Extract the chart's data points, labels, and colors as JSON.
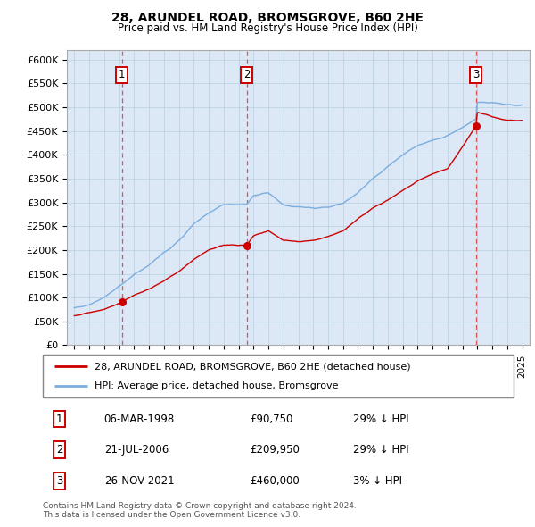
{
  "title": "28, ARUNDEL ROAD, BROMSGROVE, B60 2HE",
  "subtitle": "Price paid vs. HM Land Registry's House Price Index (HPI)",
  "ylim": [
    0,
    620000
  ],
  "yticks": [
    0,
    50000,
    100000,
    150000,
    200000,
    250000,
    300000,
    350000,
    400000,
    450000,
    500000,
    550000,
    600000
  ],
  "ylabels": [
    "£0",
    "£50K",
    "£100K",
    "£150K",
    "£200K",
    "£250K",
    "£300K",
    "£350K",
    "£400K",
    "£450K",
    "£500K",
    "£550K",
    "£600K"
  ],
  "xlim": [
    1994.5,
    2025.5
  ],
  "sales": [
    {
      "date_num": 1998.18,
      "price": 90750,
      "label": "1",
      "date_str": "06-MAR-1998",
      "pct": "29% ↓ HPI"
    },
    {
      "date_num": 2006.55,
      "price": 209950,
      "label": "2",
      "date_str": "21-JUL-2006",
      "pct": "29% ↓ HPI"
    },
    {
      "date_num": 2021.9,
      "price": 460000,
      "label": "3",
      "date_str": "26-NOV-2021",
      "pct": "3% ↓ HPI"
    }
  ],
  "legend_line1": "28, ARUNDEL ROAD, BROMSGROVE, B60 2HE (detached house)",
  "legend_line2": "HPI: Average price, detached house, Bromsgrove",
  "footnote1": "Contains HM Land Registry data © Crown copyright and database right 2024.",
  "footnote2": "This data is licensed under the Open Government Licence v3.0.",
  "background_color": "#dce8f5",
  "line_color_red": "#cc0000",
  "line_color_blue": "#7aade0",
  "vline_color": "#dd4444",
  "grid_color": "#b8cfe0",
  "label_box_color": "#cc0000",
  "title_fontsize": 10,
  "subtitle_fontsize": 8.5,
  "tick_fontsize": 8,
  "legend_fontsize": 8,
  "table_fontsize": 8.5,
  "footnote_fontsize": 6.5,
  "hpi_key_years": [
    1995,
    1996,
    1997,
    1998.18,
    1999,
    2000,
    2001,
    2002,
    2003,
    2004,
    2005,
    2006.55,
    2007,
    2008,
    2009,
    2010,
    2011,
    2012,
    2013,
    2014,
    2015,
    2016,
    2017,
    2018,
    2019,
    2020,
    2021.9,
    2022,
    2023,
    2024,
    2025
  ],
  "hpi_key_vals": [
    78000,
    85000,
    100000,
    127817,
    148000,
    168000,
    195000,
    218000,
    255000,
    278000,
    295704,
    295704,
    315000,
    320000,
    295000,
    290000,
    288000,
    290000,
    298000,
    320000,
    350000,
    375000,
    400000,
    420000,
    430000,
    440000,
    474227,
    510000,
    510000,
    505000,
    505000
  ],
  "prop_key_years": [
    1995,
    1997,
    1998.18,
    1999,
    2000,
    2001,
    2002,
    2003,
    2004,
    2005,
    2006.55,
    2007,
    2008,
    2009,
    2010,
    2011,
    2012,
    2013,
    2014,
    2015,
    2016,
    2017,
    2018,
    2019,
    2020,
    2021.9,
    2022,
    2023,
    2024,
    2025
  ],
  "prop_key_vals": [
    62000,
    75000,
    90750,
    105000,
    118000,
    135000,
    155000,
    180000,
    200000,
    209950,
    209950,
    230000,
    240000,
    220000,
    218000,
    220000,
    228000,
    240000,
    265000,
    288000,
    305000,
    325000,
    345000,
    360000,
    370000,
    460000,
    490000,
    480000,
    472000,
    472000
  ]
}
